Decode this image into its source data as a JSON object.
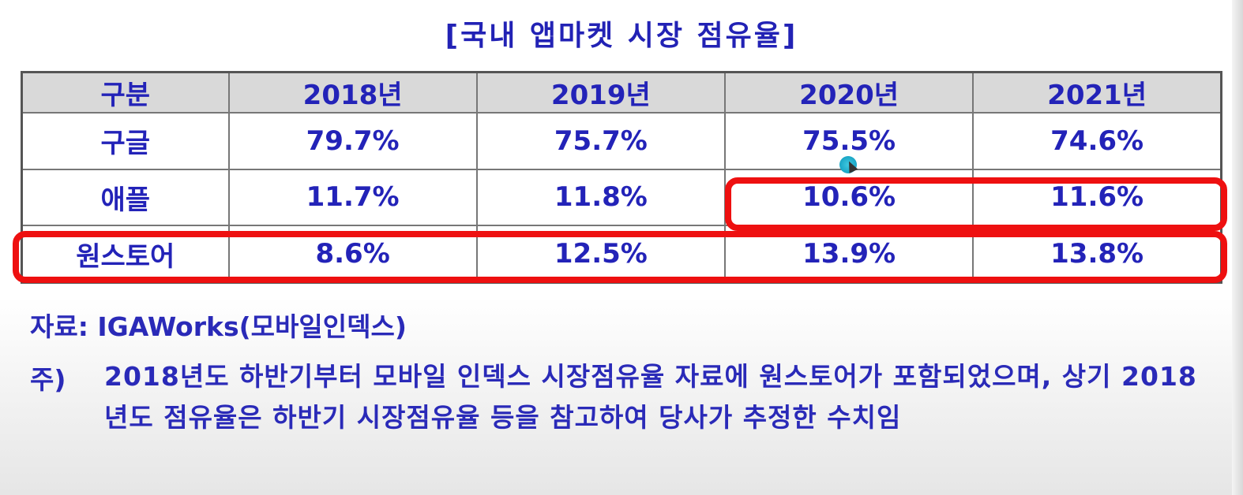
{
  "title": "[국내 앱마켓 시장 점유율]",
  "table": {
    "headers": [
      "구분",
      "2018년",
      "2019년",
      "2020년",
      "2021년"
    ],
    "rows": [
      {
        "label": "구글",
        "values": [
          "79.7%",
          "75.7%",
          "75.5%",
          "74.6%"
        ]
      },
      {
        "label": "애플",
        "values": [
          "11.7%",
          "11.8%",
          "10.6%",
          "11.6%"
        ]
      },
      {
        "label": "원스토어",
        "values": [
          "8.6%",
          "12.5%",
          "13.9%",
          "13.8%"
        ]
      }
    ]
  },
  "source": "자료: IGAWorks(모바일인덱스)",
  "note": {
    "label": "주)",
    "text": "2018년도 하반기부터 모바일 인덱스 시장점유율 자료에 원스토어가 포함되었으며, 상기 2018년도 점유율은 하반기 시장점유율 등을 참고하여 당사가 추정한 수치임"
  },
  "colors": {
    "text": "#2323b8",
    "header_bg": "#d9d9d9",
    "highlight": "#ee1010"
  },
  "icons": [
    "cursor-icon"
  ]
}
